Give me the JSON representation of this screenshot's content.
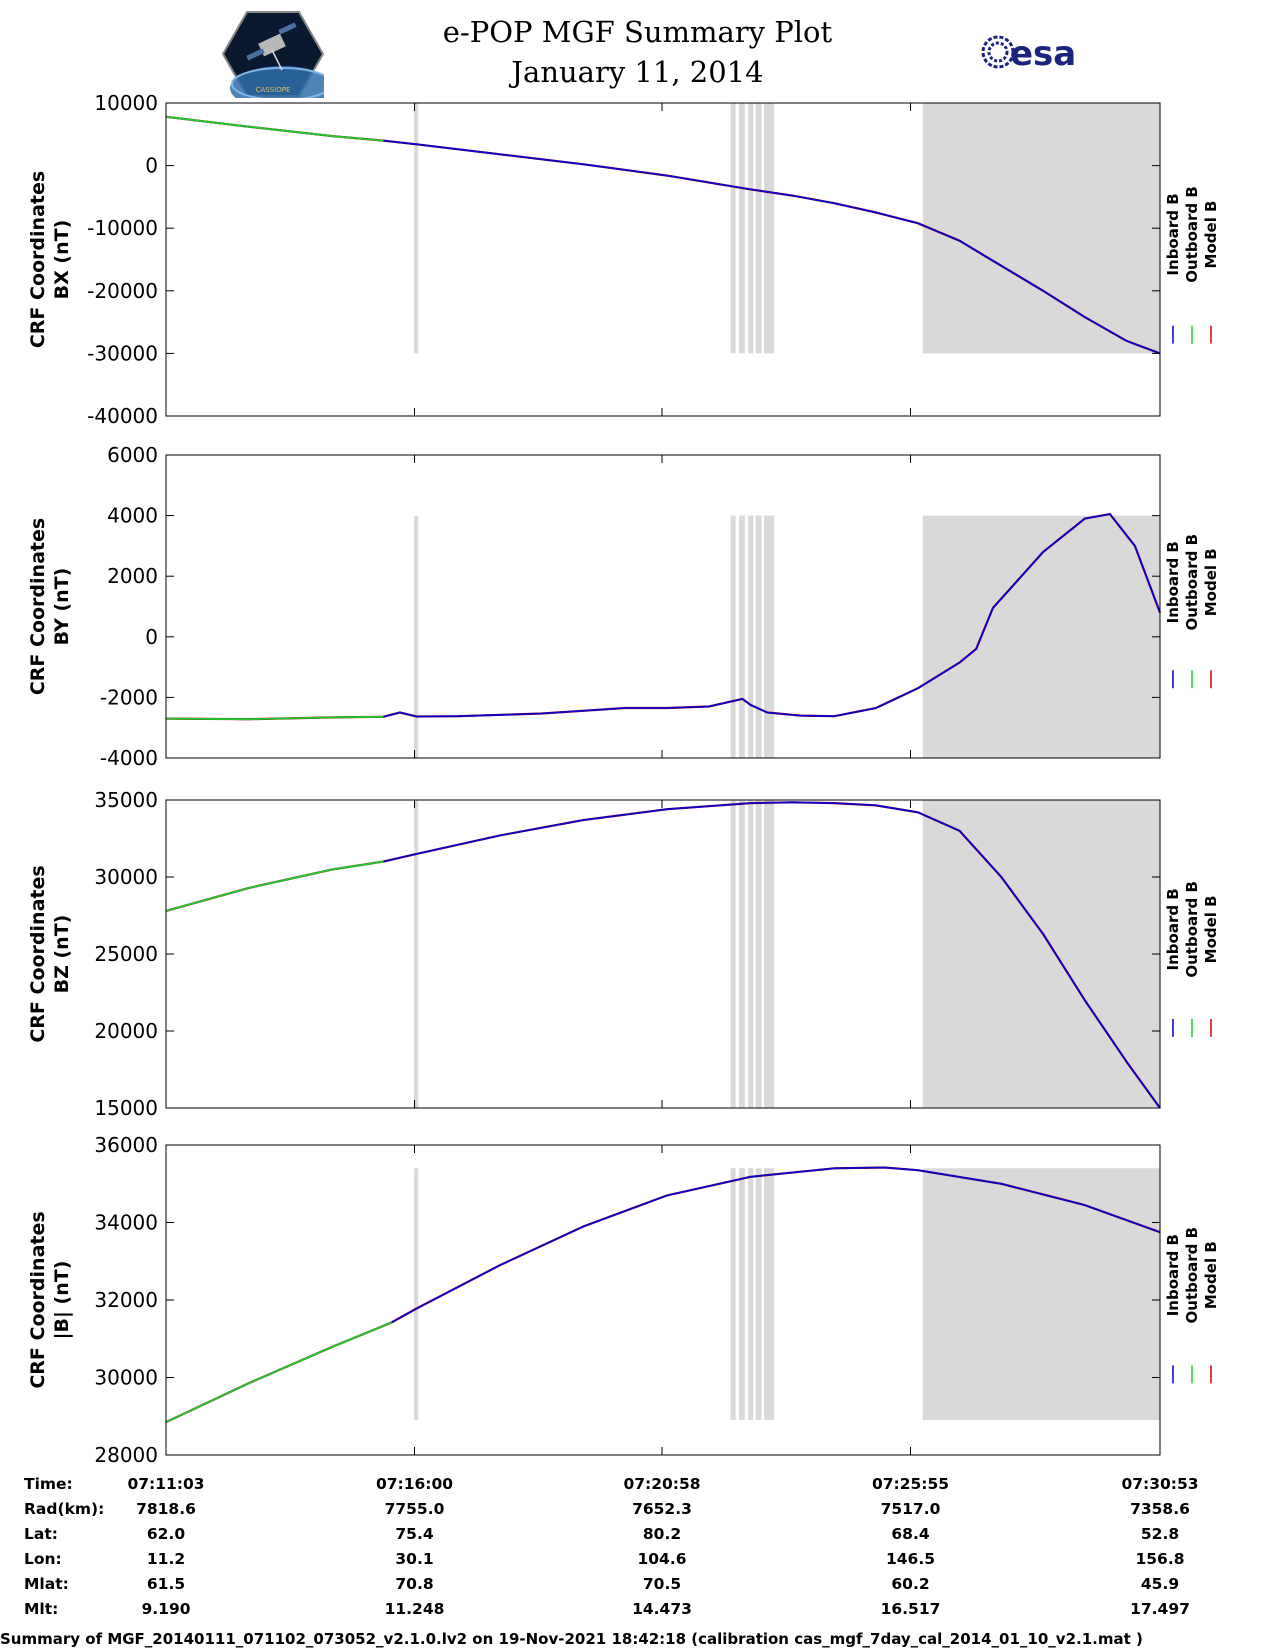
{
  "header": {
    "title": "e-POP MGF Summary Plot",
    "date": "January 11, 2014",
    "logo_left": "CASSIOPE",
    "logo_right": "esa"
  },
  "colors": {
    "inboard": "#0000cc",
    "outboard": "#22cc22",
    "model": "#dd0000",
    "shade": "#d9d9d9"
  },
  "legend": [
    "Inboard B",
    "Outboard B",
    "Model B"
  ],
  "chart_data": [
    {
      "type": "line",
      "ylabel": [
        "CRF Coordinates",
        "BX (nT)"
      ],
      "ylim": [
        -40000,
        10000
      ],
      "yticks": [
        10000,
        0,
        -10000,
        -20000,
        -30000,
        -40000
      ],
      "xlim": [
        0,
        1190
      ],
      "xticks": [
        "07:11:03",
        "07:16:00",
        "07:20:58",
        "07:25:55",
        "07:30:53"
      ],
      "shade_extent": [
        -30000,
        10000
      ],
      "shaded_intervals": [
        [
          297,
          302
        ],
        [
          676,
          682
        ],
        [
          686,
          693
        ],
        [
          697,
          703
        ],
        [
          706,
          713
        ],
        [
          716,
          728
        ],
        [
          906,
          1190
        ]
      ],
      "green_end": 260,
      "series": [
        {
          "name": "Inboard B",
          "x": [
            0,
            100,
            200,
            260,
            300,
            400,
            500,
            600,
            650,
            700,
            750,
            800,
            850,
            900,
            950,
            1000,
            1050,
            1100,
            1150,
            1190
          ],
          "values": [
            7800,
            6200,
            4700,
            4000,
            3400,
            1800,
            200,
            -1600,
            -2700,
            -3800,
            -4800,
            -6000,
            -7500,
            -9200,
            -12000,
            -16000,
            -20000,
            -24200,
            -28000,
            -30000
          ]
        },
        {
          "name": "Outboard B",
          "x": [
            0,
            100,
            200,
            260
          ],
          "values": [
            7800,
            6200,
            4700,
            4000
          ]
        },
        {
          "name": "Model B",
          "x": [
            0,
            100,
            200,
            260,
            300,
            400,
            500,
            600,
            650,
            700,
            750,
            800,
            850,
            900,
            950,
            1000,
            1050,
            1100,
            1150,
            1190
          ],
          "values": [
            7800,
            6200,
            4700,
            4000,
            3400,
            1800,
            200,
            -1600,
            -2700,
            -3800,
            -4800,
            -6000,
            -7500,
            -9200,
            -12000,
            -16000,
            -20000,
            -24200,
            -28000,
            -30000
          ]
        }
      ]
    },
    {
      "type": "line",
      "ylabel": [
        "CRF Coordinates",
        "BY (nT)"
      ],
      "ylim": [
        -4000,
        6000
      ],
      "yticks": [
        6000,
        4000,
        2000,
        0,
        -2000,
        -4000
      ],
      "xlim": [
        0,
        1190
      ],
      "xticks": [
        "07:11:03",
        "07:16:00",
        "07:20:58",
        "07:25:55",
        "07:30:53"
      ],
      "shade_extent": [
        -4000,
        4000
      ],
      "shaded_intervals": [
        [
          297,
          302
        ],
        [
          676,
          682
        ],
        [
          686,
          693
        ],
        [
          697,
          703
        ],
        [
          706,
          713
        ],
        [
          716,
          728
        ],
        [
          906,
          1190
        ]
      ],
      "green_end": 260,
      "series": [
        {
          "name": "Inboard B",
          "x": [
            0,
            100,
            200,
            260,
            280,
            300,
            350,
            450,
            550,
            600,
            650,
            690,
            700,
            720,
            760,
            800,
            850,
            900,
            950,
            970,
            990,
            1050,
            1100,
            1130,
            1160,
            1190
          ],
          "values": [
            -2700,
            -2720,
            -2660,
            -2640,
            -2500,
            -2630,
            -2620,
            -2530,
            -2350,
            -2350,
            -2300,
            -2050,
            -2250,
            -2500,
            -2600,
            -2620,
            -2350,
            -1700,
            -850,
            -400,
            950,
            2800,
            3900,
            4050,
            3000,
            800
          ]
        },
        {
          "name": "Outboard B",
          "x": [
            0,
            100,
            200,
            260
          ],
          "values": [
            -2700,
            -2720,
            -2660,
            -2640
          ]
        },
        {
          "name": "Model B",
          "x": [
            0,
            100,
            200,
            260,
            280,
            300,
            350,
            450,
            550,
            600,
            650,
            690,
            700,
            720,
            760,
            800,
            850,
            900,
            950,
            970,
            990,
            1050,
            1100,
            1130,
            1160,
            1190
          ],
          "values": [
            -2700,
            -2720,
            -2660,
            -2640,
            -2500,
            -2630,
            -2620,
            -2530,
            -2350,
            -2350,
            -2300,
            -2050,
            -2250,
            -2500,
            -2600,
            -2620,
            -2350,
            -1700,
            -850,
            -400,
            950,
            2800,
            3900,
            4050,
            3000,
            800
          ]
        }
      ]
    },
    {
      "type": "line",
      "ylabel": [
        "CRF Coordinates",
        "BZ (nT)"
      ],
      "ylim": [
        15000,
        35000
      ],
      "yticks": [
        35000,
        30000,
        25000,
        20000,
        15000
      ],
      "xlim": [
        0,
        1190
      ],
      "xticks": [
        "07:11:03",
        "07:16:00",
        "07:20:58",
        "07:25:55",
        "07:30:53"
      ],
      "shade_extent": [
        15000,
        35000
      ],
      "shaded_intervals": [
        [
          297,
          302
        ],
        [
          676,
          682
        ],
        [
          686,
          693
        ],
        [
          697,
          703
        ],
        [
          706,
          713
        ],
        [
          716,
          728
        ],
        [
          906,
          1190
        ]
      ],
      "green_end": 260,
      "series": [
        {
          "name": "Inboard B",
          "x": [
            0,
            100,
            200,
            260,
            300,
            400,
            500,
            600,
            700,
            750,
            800,
            850,
            900,
            950,
            1000,
            1050,
            1100,
            1150,
            1190
          ],
          "values": [
            27800,
            29300,
            30500,
            31000,
            31500,
            32700,
            33700,
            34400,
            34800,
            34850,
            34800,
            34650,
            34200,
            33000,
            30000,
            26300,
            22000,
            18000,
            15000
          ]
        },
        {
          "name": "Outboard B",
          "x": [
            0,
            100,
            200,
            260
          ],
          "values": [
            27800,
            29300,
            30500,
            31000
          ]
        },
        {
          "name": "Model B",
          "x": [
            0,
            100,
            200,
            260,
            300,
            400,
            500,
            600,
            700,
            750,
            800,
            850,
            900,
            950,
            1000,
            1050,
            1100,
            1150,
            1190
          ],
          "values": [
            27800,
            29300,
            30500,
            31000,
            31500,
            32700,
            33700,
            34400,
            34800,
            34850,
            34800,
            34650,
            34200,
            33000,
            30000,
            26300,
            22000,
            18000,
            15000
          ]
        }
      ]
    },
    {
      "type": "line",
      "ylabel": [
        "CRF Coordinates",
        "|B| (nT)"
      ],
      "ylim": [
        28000,
        36000
      ],
      "yticks": [
        36000,
        34000,
        32000,
        30000,
        28000
      ],
      "xlim": [
        0,
        1190
      ],
      "xticks": [
        "07:11:03",
        "07:16:00",
        "07:20:58",
        "07:25:55",
        "07:30:53"
      ],
      "shade_extent": [
        28900,
        35400
      ],
      "shaded_intervals": [
        [
          297,
          302
        ],
        [
          676,
          682
        ],
        [
          686,
          693
        ],
        [
          697,
          703
        ],
        [
          706,
          713
        ],
        [
          716,
          728
        ],
        [
          906,
          1190
        ]
      ],
      "green_end": 270,
      "series": [
        {
          "name": "Inboard B",
          "x": [
            0,
            100,
            200,
            270,
            300,
            400,
            500,
            600,
            700,
            800,
            860,
            900,
            1000,
            1100,
            1190
          ],
          "values": [
            28850,
            29860,
            30800,
            31420,
            31780,
            32900,
            33900,
            34700,
            35180,
            35400,
            35420,
            35350,
            35000,
            34450,
            33750
          ]
        },
        {
          "name": "Outboard B",
          "x": [
            0,
            100,
            200,
            270
          ],
          "values": [
            28850,
            29860,
            30800,
            31420
          ]
        },
        {
          "name": "Model B",
          "x": [
            0,
            100,
            200,
            270,
            300,
            400,
            500,
            600,
            700,
            800,
            860,
            900,
            1000,
            1100,
            1190
          ],
          "values": [
            28850,
            29860,
            30800,
            31420,
            31780,
            32900,
            33900,
            34700,
            35180,
            35400,
            35420,
            35350,
            35000,
            34450,
            33750
          ]
        }
      ]
    }
  ],
  "orbit": {
    "labels": [
      "Time:",
      "Rad(km):",
      "Lat:",
      "Lon:",
      "Mlat:",
      "Mlt:"
    ],
    "columns": [
      [
        "07:11:03",
        "7818.6",
        "62.0",
        "11.2",
        "61.5",
        "9.190"
      ],
      [
        "07:16:00",
        "7755.0",
        "75.4",
        "30.1",
        "70.8",
        "11.248"
      ],
      [
        "07:20:58",
        "7652.3",
        "80.2",
        "104.6",
        "70.5",
        "14.473"
      ],
      [
        "07:25:55",
        "7517.0",
        "68.4",
        "146.5",
        "60.2",
        "16.517"
      ],
      [
        "07:30:53",
        "7358.6",
        "52.8",
        "156.8",
        "45.9",
        "17.497"
      ]
    ]
  },
  "footer": "Summary of MGF_20140111_071102_073052_v2.1.0.lv2 on 19-Nov-2021 18:42:18 (calibration cas_mgf_7day_cal_2014_01_10_v2.1.mat )"
}
